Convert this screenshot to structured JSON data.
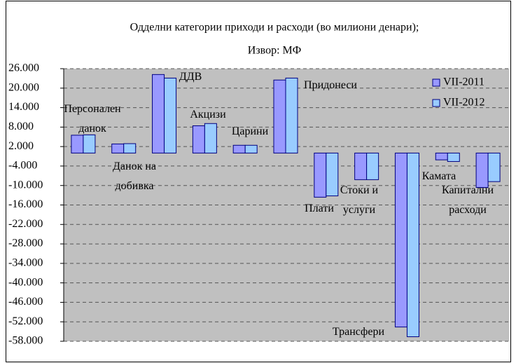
{
  "chart_data": {
    "type": "bar",
    "title": "Одделни категории приходи и расходи (во милиони денари);",
    "subtitle": "Извор: МФ",
    "categories": [
      "Персонален данок",
      "Данок на добивка",
      "ДДВ",
      "Акцизи",
      "Царини",
      "Придонеси",
      "Плати",
      "Стоки и услуги",
      "Трансфери",
      "Камата",
      "Капитални расходи"
    ],
    "series": [
      {
        "name": "VII-2011",
        "color": "#9999ff",
        "values": [
          5500,
          2800,
          24200,
          8400,
          2400,
          22500,
          -13600,
          -8200,
          -53600,
          -2100,
          -10600
        ]
      },
      {
        "name": "VII-2012",
        "color": "#99ccff",
        "values": [
          5600,
          2900,
          23100,
          9100,
          2400,
          23100,
          -13200,
          -8200,
          -56600,
          -2600,
          -8800
        ]
      }
    ],
    "ylim": [
      -58000,
      26000
    ],
    "yticks": [
      {
        "value": 26000,
        "label": "26.000"
      },
      {
        "value": 20000,
        "label": "20.000"
      },
      {
        "value": 14000,
        "label": "14.000"
      },
      {
        "value": 8000,
        "label": "8.000"
      },
      {
        "value": 2000,
        "label": "2.000"
      },
      {
        "value": -4000,
        "label": "-4.000"
      },
      {
        "value": -10000,
        "label": "-10.000"
      },
      {
        "value": -16000,
        "label": "-16.000"
      },
      {
        "value": -22000,
        "label": "-22.000"
      },
      {
        "value": -28000,
        "label": "-28.000"
      },
      {
        "value": -34000,
        "label": "-34.000"
      },
      {
        "value": -40000,
        "label": "-40.000"
      },
      {
        "value": -46000,
        "label": "-46.000"
      },
      {
        "value": -52000,
        "label": "-52.000"
      },
      {
        "value": -58000,
        "label": "-58.000"
      }
    ],
    "grid": true,
    "legend": "top-right"
  }
}
